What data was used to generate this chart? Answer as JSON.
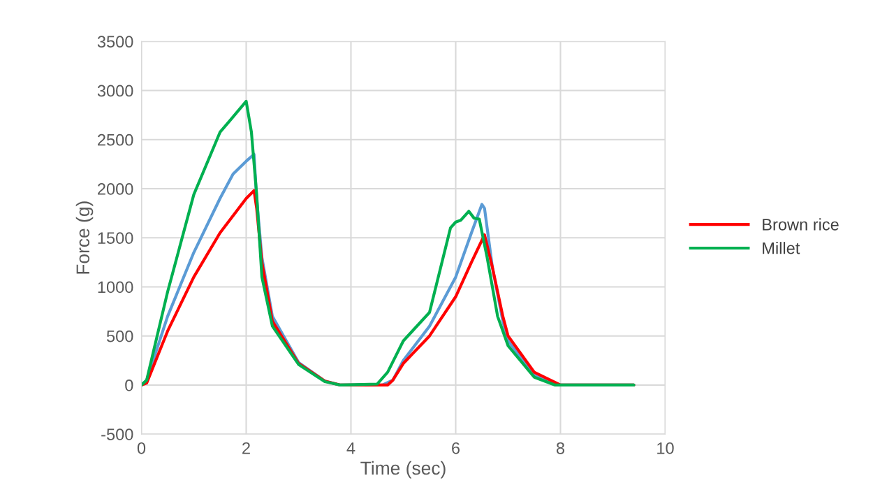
{
  "chart_data": {
    "type": "line",
    "xlabel": "Time (sec)",
    "ylabel": "Force (g)",
    "xlim": [
      0,
      10
    ],
    "xticks": [
      0,
      2,
      4,
      6,
      8,
      10
    ],
    "ylim": [
      -500,
      3500
    ],
    "yticks": [
      -500,
      0,
      500,
      1000,
      1500,
      2000,
      2500,
      3000,
      3500
    ],
    "grid": true,
    "legend": "right",
    "line_style": "solid",
    "marker": "none",
    "series": [
      {
        "color": "#5b9bd5",
        "x": [
          0,
          0.1,
          0.5,
          1,
          1.5,
          1.75,
          2,
          2.15,
          2.2,
          2.3,
          2.5,
          3,
          3.5,
          3.8,
          4.6,
          4.8,
          5,
          5.5,
          6,
          6.3,
          6.5,
          6.55,
          6.7,
          6.9,
          7,
          7.5,
          8,
          9.4
        ],
        "values": [
          0,
          50,
          700,
          1350,
          1900,
          2150,
          2280,
          2350,
          1900,
          1300,
          700,
          230,
          40,
          0,
          0,
          50,
          250,
          600,
          1100,
          1550,
          1840,
          1800,
          1200,
          650,
          450,
          100,
          0,
          0
        ]
      },
      {
        "name": "Brown rice",
        "color": "#ff0000",
        "x": [
          0,
          0.1,
          0.5,
          1,
          1.5,
          2,
          2.15,
          2.2,
          2.3,
          2.5,
          3,
          3.5,
          3.8,
          4.7,
          4.8,
          5,
          5.5,
          6,
          6.3,
          6.55,
          6.7,
          6.9,
          7,
          7.5,
          8,
          9.4
        ],
        "values": [
          0,
          20,
          550,
          1100,
          1550,
          1900,
          1980,
          1800,
          1250,
          650,
          220,
          40,
          0,
          0,
          50,
          220,
          500,
          900,
          1250,
          1530,
          1200,
          700,
          500,
          130,
          0,
          0
        ]
      },
      {
        "name": "Millet",
        "color": "#00b050",
        "x": [
          0,
          0.1,
          0.5,
          1,
          1.5,
          1.7,
          2,
          2.1,
          2.2,
          2.3,
          2.5,
          3,
          3.5,
          3.8,
          4.5,
          4.7,
          5,
          5.5,
          5.9,
          6,
          6.1,
          6.25,
          6.35,
          6.45,
          6.6,
          6.8,
          7,
          7.5,
          7.9,
          9.4
        ],
        "values": [
          0,
          50,
          950,
          1940,
          2575,
          2700,
          2890,
          2575,
          1940,
          1100,
          600,
          210,
          35,
          0,
          10,
          130,
          450,
          740,
          1600,
          1660,
          1680,
          1770,
          1700,
          1690,
          1300,
          700,
          400,
          80,
          0,
          0
        ]
      }
    ]
  }
}
